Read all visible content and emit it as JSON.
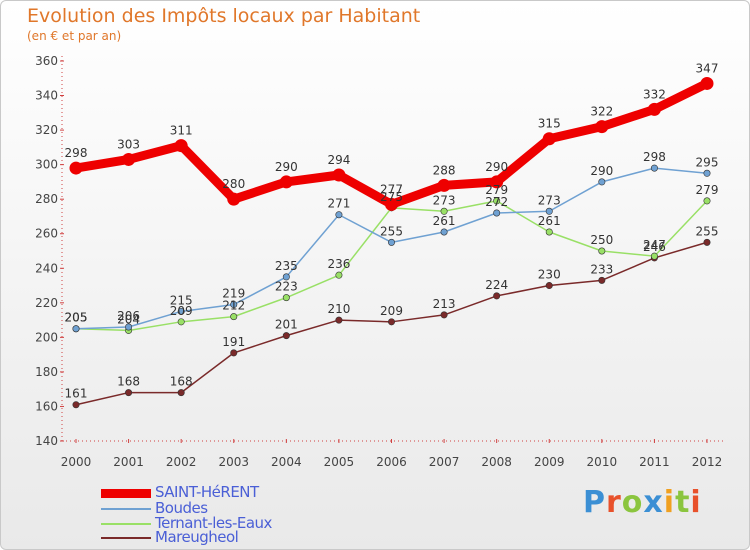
{
  "title": "Evolution des Impôts locaux par Habitant",
  "subtitle": "(en € et par an)",
  "logo": {
    "text": "Proxiti",
    "colors": [
      "#3b8fd4",
      "#e8512b",
      "#8bc53f",
      "#3b8fd4",
      "#f0a020",
      "#8bc53f",
      "#e8512b"
    ]
  },
  "chart_data": {
    "type": "line",
    "title": "Evolution des Impôts locaux par Habitant",
    "subtitle": "(en € et par an)",
    "x": [
      "2000",
      "2001",
      "2002",
      "2003",
      "2004",
      "2005",
      "2006",
      "2007",
      "2008",
      "2009",
      "2010",
      "2011",
      "2012"
    ],
    "ylim": [
      140,
      360
    ],
    "yticks": [
      140,
      160,
      180,
      200,
      220,
      240,
      260,
      280,
      300,
      320,
      340,
      360
    ],
    "grid": false,
    "series": [
      {
        "name": "SAINT-HéRENT",
        "color": "#ee0000",
        "values": [
          298,
          303,
          311,
          280,
          290,
          294,
          277,
          288,
          290,
          315,
          322,
          332,
          347
        ]
      },
      {
        "name": "Boudes",
        "color": "#6fa1d2",
        "values": [
          205,
          206,
          215,
          219,
          235,
          271,
          255,
          261,
          272,
          273,
          290,
          298,
          295
        ]
      },
      {
        "name": "Ternant-les-Eaux",
        "color": "#99e066",
        "values": [
          205,
          204,
          209,
          212,
          223,
          236,
          275,
          273,
          279,
          261,
          250,
          247,
          279
        ]
      },
      {
        "name": "Mareugheol",
        "color": "#7a2a2a",
        "values": [
          161,
          168,
          168,
          191,
          201,
          210,
          209,
          213,
          224,
          230,
          233,
          246,
          255
        ]
      }
    ]
  }
}
